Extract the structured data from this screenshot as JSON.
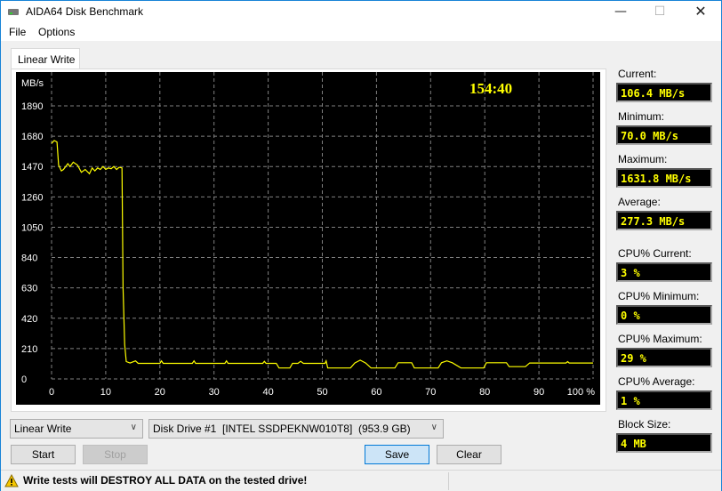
{
  "window": {
    "title": "AIDA64 Disk Benchmark",
    "minimize_icon": "minimize-icon",
    "maximize_icon": "maximize-icon",
    "close_icon": "close-icon"
  },
  "menu": [
    "File",
    "Options"
  ],
  "tab": "Linear Write",
  "stats": [
    {
      "label": "Current:",
      "value": "106.4 MB/s"
    },
    {
      "label": "Minimum:",
      "value": "70.0 MB/s"
    },
    {
      "label": "Maximum:",
      "value": "1631.8 MB/s"
    },
    {
      "label": "Average:",
      "value": "277.3 MB/s"
    },
    {
      "label": "CPU% Current:",
      "value": "3 %"
    },
    {
      "label": "CPU% Minimum:",
      "value": "0 %"
    },
    {
      "label": "CPU% Maximum:",
      "value": "29 %"
    },
    {
      "label": "CPU% Average:",
      "value": "1 %"
    },
    {
      "label": "Block Size:",
      "value": "4 MB"
    }
  ],
  "controls": {
    "test_select": "Linear Write",
    "drive_select": "Disk Drive #1  [INTEL SSDPEKNW010T8]  (953.9 GB)",
    "start": "Start",
    "stop": "Stop",
    "save": "Save",
    "clear": "Clear"
  },
  "status": {
    "warning": "Write tests will DESTROY ALL DATA on the tested drive!"
  },
  "chart_data": {
    "type": "line",
    "ylabel": "MB/s",
    "timer": "154:40",
    "x_ticks": [
      "0",
      "10",
      "20",
      "30",
      "40",
      "50",
      "60",
      "70",
      "80",
      "90",
      "100 %"
    ],
    "y_ticks": [
      "0",
      "210",
      "420",
      "630",
      "840",
      "1050",
      "1260",
      "1470",
      "1680",
      "1890"
    ],
    "xlim": [
      0,
      100
    ],
    "ylim": [
      0,
      1890
    ],
    "grid": true,
    "colors": {
      "line": "#ffff00",
      "background": "#000000",
      "grid": "#808080"
    },
    "series": [
      {
        "values": [
          [
            0,
            1630
          ],
          [
            0.5,
            1650
          ],
          [
            1,
            1640
          ],
          [
            1.3,
            1480
          ],
          [
            1.8,
            1440
          ],
          [
            2.2,
            1450
          ],
          [
            3,
            1490
          ],
          [
            3.4,
            1470
          ],
          [
            4,
            1500
          ],
          [
            4.8,
            1480
          ],
          [
            5.5,
            1430
          ],
          [
            6.2,
            1450
          ],
          [
            7,
            1420
          ],
          [
            7.5,
            1460
          ],
          [
            8,
            1440
          ],
          [
            8.5,
            1460
          ],
          [
            9,
            1450
          ],
          [
            9.5,
            1470
          ],
          [
            10,
            1450
          ],
          [
            10.5,
            1460
          ],
          [
            11,
            1455
          ],
          [
            11.5,
            1470
          ],
          [
            12,
            1450
          ],
          [
            12.5,
            1465
          ],
          [
            13,
            1460
          ],
          [
            13.2,
            630
          ],
          [
            13.5,
            240
          ],
          [
            13.8,
            120
          ],
          [
            14.5,
            110
          ],
          [
            15.5,
            125
          ],
          [
            16,
            108
          ],
          [
            20,
            108
          ],
          [
            20.3,
            125
          ],
          [
            20.6,
            108
          ],
          [
            26,
            108
          ],
          [
            26.3,
            125
          ],
          [
            26.6,
            108
          ],
          [
            32,
            108
          ],
          [
            32.3,
            125
          ],
          [
            32.6,
            108
          ],
          [
            39,
            108
          ],
          [
            39.3,
            122
          ],
          [
            39.6,
            108
          ],
          [
            41.5,
            108
          ],
          [
            42,
            76
          ],
          [
            44,
            76
          ],
          [
            44.5,
            108
          ],
          [
            45.5,
            108
          ],
          [
            46,
            122
          ],
          [
            46.5,
            108
          ],
          [
            50.5,
            108
          ],
          [
            50.7,
            125
          ],
          [
            51,
            76
          ],
          [
            55.2,
            76
          ],
          [
            56,
            110
          ],
          [
            57,
            130
          ],
          [
            58,
            110
          ],
          [
            59,
            76
          ],
          [
            63.4,
            76
          ],
          [
            64,
            112
          ],
          [
            66.5,
            112
          ],
          [
            67,
            76
          ],
          [
            71.4,
            76
          ],
          [
            72,
            112
          ],
          [
            73,
            125
          ],
          [
            74,
            112
          ],
          [
            75.6,
            76
          ],
          [
            79.8,
            76
          ],
          [
            80.3,
            112
          ],
          [
            84,
            112
          ],
          [
            84.5,
            85
          ],
          [
            87.5,
            85
          ],
          [
            88.3,
            110
          ],
          [
            95,
            110
          ],
          [
            95.3,
            120
          ],
          [
            95.6,
            110
          ],
          [
            100,
            110
          ]
        ]
      }
    ]
  }
}
